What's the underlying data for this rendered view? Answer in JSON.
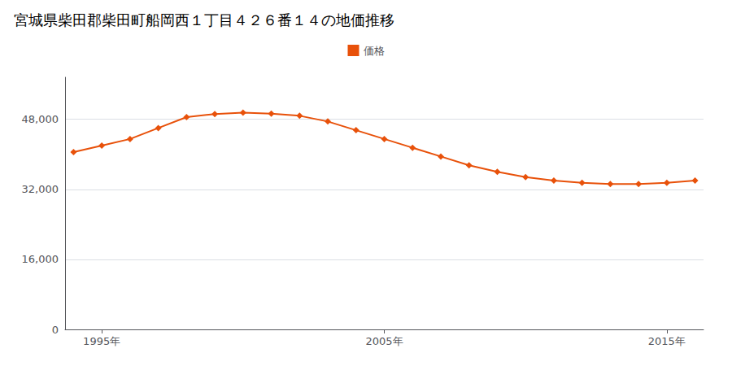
{
  "chart_data": {
    "type": "line",
    "title": "宮城県柴田郡柴田町船岡西１丁目４２６番１４の地価推移",
    "series": [
      {
        "name": "価格",
        "color": "#e8510a",
        "marker": "diamond",
        "values": [
          40500,
          42000,
          43500,
          46000,
          48500,
          49200,
          49500,
          49300,
          48800,
          47500,
          45500,
          43500,
          41500,
          39500,
          37500,
          36000,
          34800,
          34000,
          33500,
          33200,
          33200,
          33500,
          34000
        ]
      }
    ],
    "x": [
      1994,
      1995,
      1996,
      1997,
      1998,
      1999,
      2000,
      2001,
      2002,
      2003,
      2004,
      2005,
      2006,
      2007,
      2008,
      2009,
      2010,
      2011,
      2012,
      2013,
      2014,
      2015,
      2016
    ],
    "xlim": [
      1993.7,
      2016.3
    ],
    "xticks": [
      {
        "value": 1995,
        "label": "1995年"
      },
      {
        "value": 2005,
        "label": "2005年"
      },
      {
        "value": 2015,
        "label": "2015年"
      }
    ],
    "ylim": [
      0,
      57600
    ],
    "yticks": [
      0,
      {
        "value": 16000,
        "label": "16,000"
      },
      {
        "value": 32000,
        "label": "32,000"
      },
      {
        "value": 48000,
        "label": "48,000"
      }
    ],
    "grid": true,
    "legend": "top"
  }
}
